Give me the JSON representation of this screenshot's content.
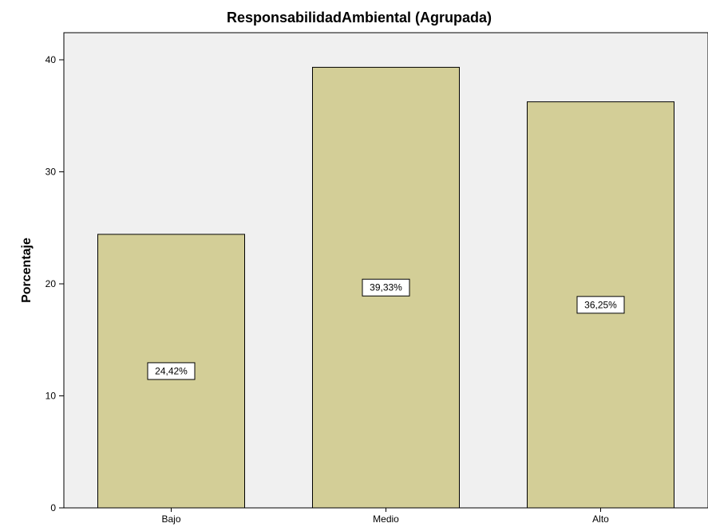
{
  "chart_data": {
    "type": "bar",
    "title": "ResponsabilidadAmbiental (Agrupada)",
    "xlabel": "",
    "ylabel": "Porcentaje",
    "categories": [
      "Bajo",
      "Medio",
      "Alto"
    ],
    "values": [
      24.42,
      39.33,
      36.25
    ],
    "data_labels": [
      "24,42%",
      "39,33%",
      "36,25%"
    ],
    "ylim": [
      0,
      40
    ],
    "yticks": [
      0,
      10,
      20,
      30,
      40
    ],
    "ytick_labels": [
      "0",
      "10",
      "20",
      "30",
      "40"
    ],
    "grid": false,
    "legend": "none",
    "colors": {
      "bar_fill": "#D3CE97",
      "bar_stroke": "#000000",
      "plot_background": "#F0F0F0",
      "label_box_fill": "#FFFFFF"
    }
  }
}
